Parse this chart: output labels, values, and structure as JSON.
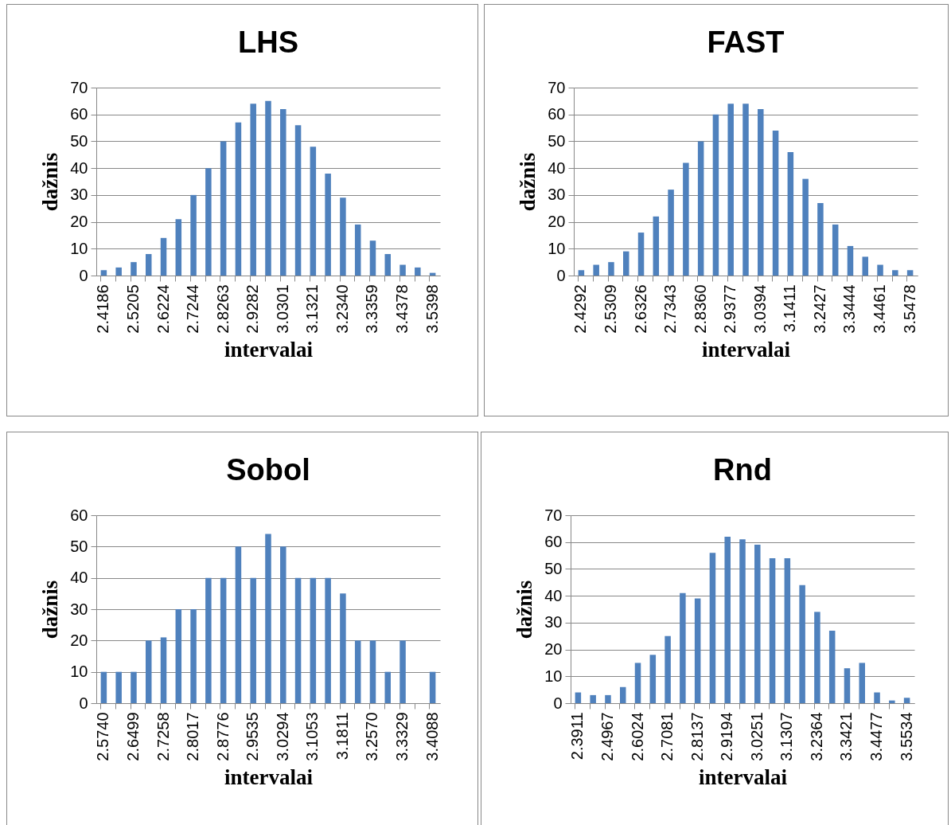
{
  "chart_data": [
    {
      "type": "bar",
      "title": "LHS",
      "xlabel": "intervalai",
      "ylabel": "dažnis",
      "categories": [
        "2.4186",
        null,
        "2.5205",
        null,
        "2.6224",
        null,
        "2.7244",
        null,
        "2.8263",
        null,
        "2.9282",
        null,
        "3.0301",
        null,
        "3.1321",
        null,
        "3.2340",
        null,
        "3.3359",
        null,
        "3.4378",
        null,
        "3.5398"
      ],
      "values": [
        2,
        3,
        5,
        8,
        14,
        21,
        30,
        40,
        50,
        57,
        64,
        65,
        62,
        56,
        48,
        38,
        29,
        19,
        13,
        8,
        4,
        3,
        1
      ],
      "color": "#4f81bd",
      "ylim": [
        0,
        70
      ],
      "yticks": [
        0,
        10,
        20,
        30,
        40,
        50,
        60,
        70
      ],
      "grid": "y"
    },
    {
      "type": "bar",
      "title": "FAST",
      "xlabel": "intervalai",
      "ylabel": "dažnis",
      "categories": [
        "2.4292",
        null,
        "2.5309",
        null,
        "2.6326",
        null,
        "2.7343",
        null,
        "2.8360",
        null,
        "2.9377",
        null,
        "3.0394",
        null,
        "3.1411",
        null,
        "3.2427",
        null,
        "3.3444",
        null,
        "3.4461",
        null,
        "3.5478"
      ],
      "values": [
        2,
        4,
        5,
        9,
        16,
        22,
        32,
        42,
        50,
        60,
        64,
        64,
        62,
        54,
        46,
        36,
        27,
        19,
        11,
        7,
        4,
        2,
        2
      ],
      "color": "#4f81bd",
      "ylim": [
        0,
        70
      ],
      "yticks": [
        0,
        10,
        20,
        30,
        40,
        50,
        60,
        70
      ],
      "grid": "y"
    },
    {
      "type": "bar",
      "title": "Sobol",
      "xlabel": "intervalai",
      "ylabel": "dažnis",
      "categories": [
        "2.5740",
        null,
        "2.6499",
        null,
        "2.7258",
        null,
        "2.8017",
        null,
        "2.8776",
        null,
        "2.9535",
        null,
        "3.0294",
        null,
        "3.1053",
        null,
        "3.1811",
        null,
        "3.2570",
        null,
        "3.3329",
        null,
        "3.4088"
      ],
      "values": [
        10,
        10,
        10,
        20,
        21,
        30,
        30,
        40,
        40,
        50,
        40,
        54,
        50,
        40,
        40,
        40,
        35,
        20,
        20,
        10,
        20,
        0,
        10
      ],
      "color": "#4f81bd",
      "ylim": [
        0,
        60
      ],
      "yticks": [
        0,
        10,
        20,
        30,
        40,
        50,
        60
      ],
      "grid": "y"
    },
    {
      "type": "bar",
      "title": "Rnd",
      "xlabel": "intervalai",
      "ylabel": "dažnis",
      "categories": [
        "2.3911",
        null,
        "2.4967",
        null,
        "2.6024",
        null,
        "2.7081",
        null,
        "2.8137",
        null,
        "2.9194",
        null,
        "3.0251",
        null,
        "3.1307",
        null,
        "3.2364",
        null,
        "3.3421",
        null,
        "3.4477",
        null,
        "3.5534"
      ],
      "values": [
        4,
        3,
        3,
        6,
        15,
        18,
        25,
        41,
        39,
        56,
        62,
        61,
        59,
        54,
        54,
        44,
        34,
        27,
        13,
        15,
        4,
        1,
        2
      ],
      "color": "#4f81bd",
      "ylim": [
        0,
        70
      ],
      "yticks": [
        0,
        10,
        20,
        30,
        40,
        50,
        60,
        70
      ],
      "grid": "y"
    }
  ]
}
